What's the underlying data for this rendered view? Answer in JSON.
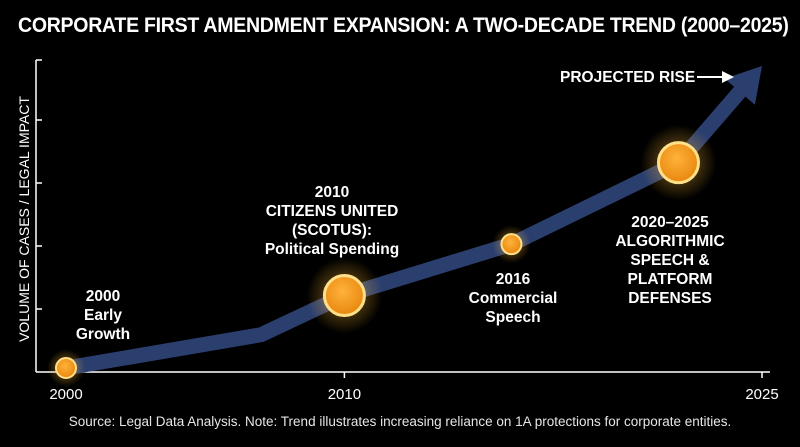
{
  "chart_data": {
    "type": "line",
    "title": "CORPORATE FIRST AMENDMENT EXPANSION: A TWO-DECADE TREND (2000–2025)",
    "ylabel": "VOLUME OF CASES / LEGAL IMPACT",
    "xlabel": "",
    "x_ticks": [
      "2000",
      "2010",
      "2025"
    ],
    "xlim": [
      2000,
      2025
    ],
    "trend": [
      {
        "x": 2000,
        "y": 0
      },
      {
        "x": 2007,
        "y": 1.1
      },
      {
        "x": 2010,
        "y": 2.4
      },
      {
        "x": 2016,
        "y": 4.1
      },
      {
        "x": 2022,
        "y": 6.8
      },
      {
        "x": 2025,
        "y": 10
      }
    ],
    "milestones": [
      {
        "x": 2000,
        "y": 0,
        "size": "small",
        "label": [
          "2000",
          "Early",
          "Growth"
        ]
      },
      {
        "x": 2010,
        "y": 2.4,
        "size": "large",
        "label": [
          "2010",
          "CITIZENS UNITED",
          "(SCOTUS):",
          "Political Spending"
        ]
      },
      {
        "x": 2016,
        "y": 4.1,
        "size": "small",
        "label": [
          "2016",
          "Commercial",
          "Speech"
        ]
      },
      {
        "x": 2022,
        "y": 6.8,
        "size": "large",
        "label": [
          "2020–2025",
          "ALGORITHMIC",
          "SPEECH &",
          "PLATFORM",
          "DEFENSES"
        ]
      }
    ],
    "annotations": [
      "PROJECTED RISE"
    ],
    "colors": {
      "trend": "#2b3f6f",
      "marker": "#f3a020",
      "marker_glow": "#ffb830",
      "marker_ring": "#ffe08a"
    },
    "grid": false,
    "legend": "none"
  },
  "footer": {
    "source": "Source: Legal Data Analysis. Note: Trend illustrates increasing reliance on 1A protections for corporate entities."
  }
}
